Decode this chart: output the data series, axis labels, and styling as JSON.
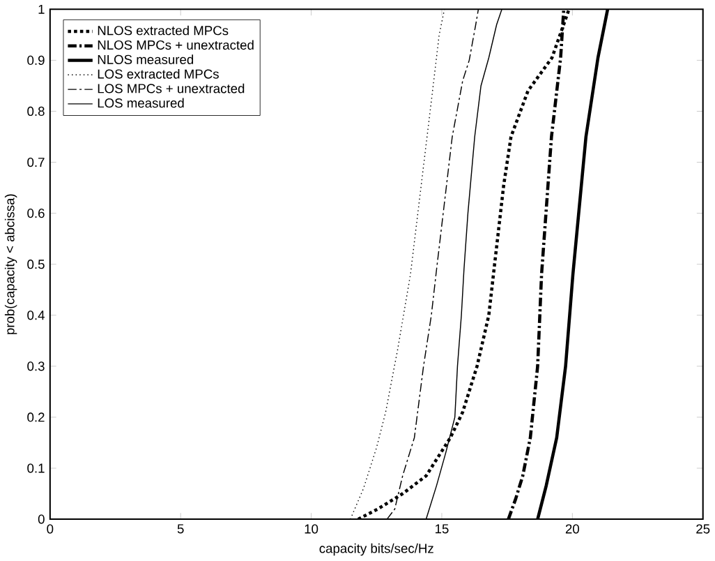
{
  "chart_data": {
    "type": "line",
    "xlabel": "capacity bits/sec/Hz",
    "ylabel": "prob(capacity < abcissa)",
    "xlim": [
      0,
      25
    ],
    "ylim": [
      0,
      1
    ],
    "xticks": [
      0,
      5,
      10,
      15,
      20,
      25
    ],
    "yticks": [
      0,
      0.1,
      0.2,
      0.3,
      0.4,
      0.5,
      0.6,
      0.7,
      0.8,
      0.9,
      1
    ],
    "legend": "top left",
    "grid": false,
    "series": [
      {
        "name": "NLOS extracted MPCs",
        "color": "#000000",
        "line_style": "dotted",
        "x": [
          11.8,
          12.55,
          13.5,
          14.4,
          15.33,
          15.8,
          16.35,
          16.8,
          17.0,
          17.37,
          17.65,
          18.3,
          19.22,
          19.87
        ],
        "values": [
          0,
          0.02,
          0.05,
          0.085,
          0.16,
          0.21,
          0.3,
          0.4,
          0.49,
          0.655,
          0.75,
          0.84,
          0.905,
          1
        ]
      },
      {
        "name": "NLOS MPCs + unextracted",
        "color": "#000000",
        "line_style": "dashed",
        "x": [
          17.55,
          17.83,
          18.1,
          18.39,
          18.67,
          18.82,
          19.2,
          19.55,
          19.67
        ],
        "values": [
          0,
          0.04,
          0.085,
          0.16,
          0.3,
          0.48,
          0.75,
          0.905,
          1
        ]
      },
      {
        "name": "NLOS measured",
        "color": "#000000",
        "line_style": "solid",
        "x": [
          18.67,
          19.0,
          19.4,
          19.74,
          20.02,
          20.52,
          20.98,
          21.35
        ],
        "values": [
          0,
          0.066,
          0.16,
          0.3,
          0.48,
          0.75,
          0.905,
          1
        ]
      },
      {
        "name": "LOS extracted MPCs",
        "color": "#000000",
        "line_style": "dotted",
        "x": [
          11.5,
          12.0,
          12.5,
          12.85,
          13.3,
          13.8,
          14.2,
          14.6,
          14.9,
          15.1
        ],
        "values": [
          0,
          0.06,
          0.14,
          0.21,
          0.33,
          0.48,
          0.65,
          0.82,
          0.95,
          1
        ]
      },
      {
        "name": "LOS MPCs + unextracted",
        "color": "#000000",
        "line_style": "dashed",
        "x": [
          12.9,
          13.2,
          13.5,
          13.95,
          14.3,
          14.6,
          14.8,
          15.1,
          15.4,
          15.8,
          16.05,
          16.3,
          16.4
        ],
        "values": [
          0,
          0.02,
          0.085,
          0.16,
          0.3,
          0.4,
          0.49,
          0.62,
          0.75,
          0.86,
          0.9,
          0.97,
          1
        ]
      },
      {
        "name": "LOS measured",
        "color": "#000000",
        "line_style": "solid",
        "x": [
          14.4,
          14.8,
          15.15,
          15.5,
          15.6,
          15.75,
          15.85,
          16.0,
          16.26,
          16.5,
          16.8,
          17.1,
          17.3
        ],
        "values": [
          0,
          0.066,
          0.13,
          0.2,
          0.3,
          0.4,
          0.49,
          0.6,
          0.75,
          0.85,
          0.905,
          0.97,
          1
        ]
      }
    ]
  }
}
